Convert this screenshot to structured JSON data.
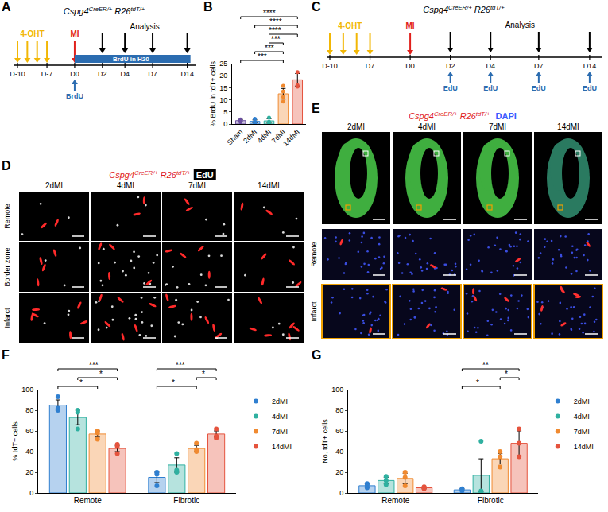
{
  "genotype": [
    {
      "text": "Cspg4",
      "sup": false
    },
    {
      "text": "CreER/+",
      "sup": true
    },
    {
      "text": "R26",
      "sup": false
    },
    {
      "text": "tdT/+",
      "sup": true
    }
  ],
  "schematic_A": {
    "letter": "A",
    "treatment": "4-OHT",
    "injury": "MI",
    "analysis": "Analysis",
    "water": "BrdU in H20",
    "pulse": "BrdU",
    "days": [
      "D-10",
      "D-7",
      "D0",
      "D2",
      "D4",
      "D7",
      "D14"
    ]
  },
  "schematic_C": {
    "letter": "C",
    "treatment": "4-OHT",
    "injury": "MI",
    "analysis": "Analysis",
    "pulse": "EdU",
    "days": [
      "D-10",
      "D7",
      "D0",
      "D2",
      "D4",
      "D7",
      "D14"
    ]
  },
  "panel_D": {
    "letter": "D",
    "stain": "EdU",
    "columns": [
      "2dMI",
      "4dMI",
      "7dMI",
      "14dMI"
    ],
    "rows": [
      "Remote",
      "Border zone",
      "Infarct"
    ]
  },
  "panel_E": {
    "letter": "E",
    "stain": "DAPI",
    "columns": [
      "2dMI",
      "4dMI",
      "7dMI",
      "14dMI"
    ],
    "rows": [
      "Remote",
      "Infarct"
    ]
  },
  "chart_data": [
    {
      "letter": "B",
      "type": "bar",
      "y_label": "% BrdU in tdT+ cells",
      "categories": [
        "Sham",
        "2dMI",
        "4dMI",
        "7dMI",
        "14dMI"
      ],
      "values": [
        1.4,
        1.1,
        1.3,
        12.5,
        18.3
      ],
      "errors": [
        0.5,
        0.6,
        0.9,
        2.2,
        2.6
      ],
      "points": [
        [
          0.8,
          1.2,
          1.9,
          1.5
        ],
        [
          0.4,
          0.9,
          2.1
        ],
        [
          0.6,
          2.6,
          0.9
        ],
        [
          9.3,
          15.8,
          13.5,
          11.2
        ],
        [
          15.5,
          16.0,
          21.5
        ]
      ],
      "colors": [
        "#6b4fa0",
        "#2f7fd0",
        "#2fb0a0",
        "#f08a30",
        "#e5533d"
      ],
      "ylim": [
        0,
        25
      ],
      "yticks": [
        0,
        5,
        10,
        15,
        20,
        25
      ],
      "significance": [
        {
          "from": "Sham",
          "to": "7dMI",
          "label": "***"
        },
        {
          "from": "2dMI",
          "to": "7dMI",
          "label": "***"
        },
        {
          "from": "4dMI",
          "to": "7dMI",
          "label": "***"
        },
        {
          "from": "4dMI",
          "to": "14dMI",
          "label": "****"
        },
        {
          "from": "2dMI",
          "to": "14dMI",
          "label": "****"
        },
        {
          "from": "Sham",
          "to": "14dMI",
          "label": "****"
        }
      ]
    },
    {
      "letter": "F",
      "type": "bar",
      "y_label": "% tdT+ cells",
      "categories": [
        "Remote",
        "Fibrotic"
      ],
      "series": [
        {
          "name": "2dMI",
          "color": "#2f7fd0",
          "values": [
            85,
            15
          ],
          "errors": [
            5,
            5
          ],
          "points": [
            [
              93,
              80,
              82
            ],
            [
              7,
              20,
              18
            ]
          ]
        },
        {
          "name": "4dMI",
          "color": "#2fb0a0",
          "values": [
            73,
            27
          ],
          "errors": [
            7,
            7
          ],
          "points": [
            [
              62,
              80,
              78
            ],
            [
              20,
              38,
              22
            ]
          ]
        },
        {
          "name": "7dMI",
          "color": "#f08a30",
          "values": [
            57,
            43
          ],
          "errors": [
            3,
            3
          ],
          "points": [
            [
              52,
              60,
              58
            ],
            [
              40,
              48,
              42
            ]
          ]
        },
        {
          "name": "14dMI",
          "color": "#e5533d",
          "values": [
            43,
            57
          ],
          "errors": [
            3,
            3
          ],
          "points": [
            [
              38,
              45,
              47
            ],
            [
              53,
              62,
              55
            ]
          ]
        }
      ],
      "ylim": [
        0,
        100
      ],
      "yticks": [
        0,
        20,
        40,
        60,
        80,
        100
      ],
      "legend": "top right",
      "significance": [
        {
          "group": "Remote",
          "from": "2dMI",
          "to": "7dMI",
          "label": "*"
        },
        {
          "group": "Remote",
          "from": "4dMI",
          "to": "14dMI",
          "label": "*"
        },
        {
          "group": "Remote",
          "from": "2dMI",
          "to": "14dMI",
          "label": "***"
        },
        {
          "group": "Fibrotic",
          "from": "2dMI",
          "to": "7dMI",
          "label": "*"
        },
        {
          "group": "Fibrotic",
          "from": "7dMI",
          "to": "14dMI",
          "label": "*"
        },
        {
          "group": "Fibrotic",
          "from": "2dMI",
          "to": "14dMI",
          "label": "***"
        }
      ]
    },
    {
      "letter": "G",
      "type": "bar",
      "y_label": "No. tdT+ cells",
      "categories": [
        "Remote",
        "Fibrotic"
      ],
      "series": [
        {
          "name": "2dMI",
          "color": "#2f7fd0",
          "values": [
            7,
            3
          ],
          "errors": [
            1.5,
            1
          ],
          "points": [
            [
              5,
              9,
              7
            ],
            [
              2,
              4,
              3
            ]
          ]
        },
        {
          "name": "4dMI",
          "color": "#2fb0a0",
          "values": [
            12,
            17
          ],
          "errors": [
            3,
            16
          ],
          "points": [
            [
              8,
              16,
              12
            ],
            [
              2,
              50,
              1
            ]
          ]
        },
        {
          "name": "7dMI",
          "color": "#f08a30",
          "values": [
            14,
            33
          ],
          "errors": [
            5,
            5
          ],
          "points": [
            [
              7,
              20,
              15
            ],
            [
              25,
              40,
              35
            ]
          ]
        },
        {
          "name": "14dMI",
          "color": "#e5533d",
          "values": [
            5,
            48
          ],
          "errors": [
            1,
            12
          ],
          "points": [
            [
              4,
              6,
              5
            ],
            [
              35,
              62,
              48
            ]
          ]
        }
      ],
      "ylim": [
        0,
        100
      ],
      "yticks": [
        0,
        20,
        40,
        60,
        80,
        100
      ],
      "legend": "top right",
      "significance": [
        {
          "group": "Fibrotic",
          "from": "2dMI",
          "to": "7dMI",
          "label": "*"
        },
        {
          "group": "Fibrotic",
          "from": "7dMI",
          "to": "14dMI",
          "label": "*"
        },
        {
          "group": "Fibrotic",
          "from": "2dMI",
          "to": "14dMI",
          "label": "**"
        }
      ]
    }
  ]
}
